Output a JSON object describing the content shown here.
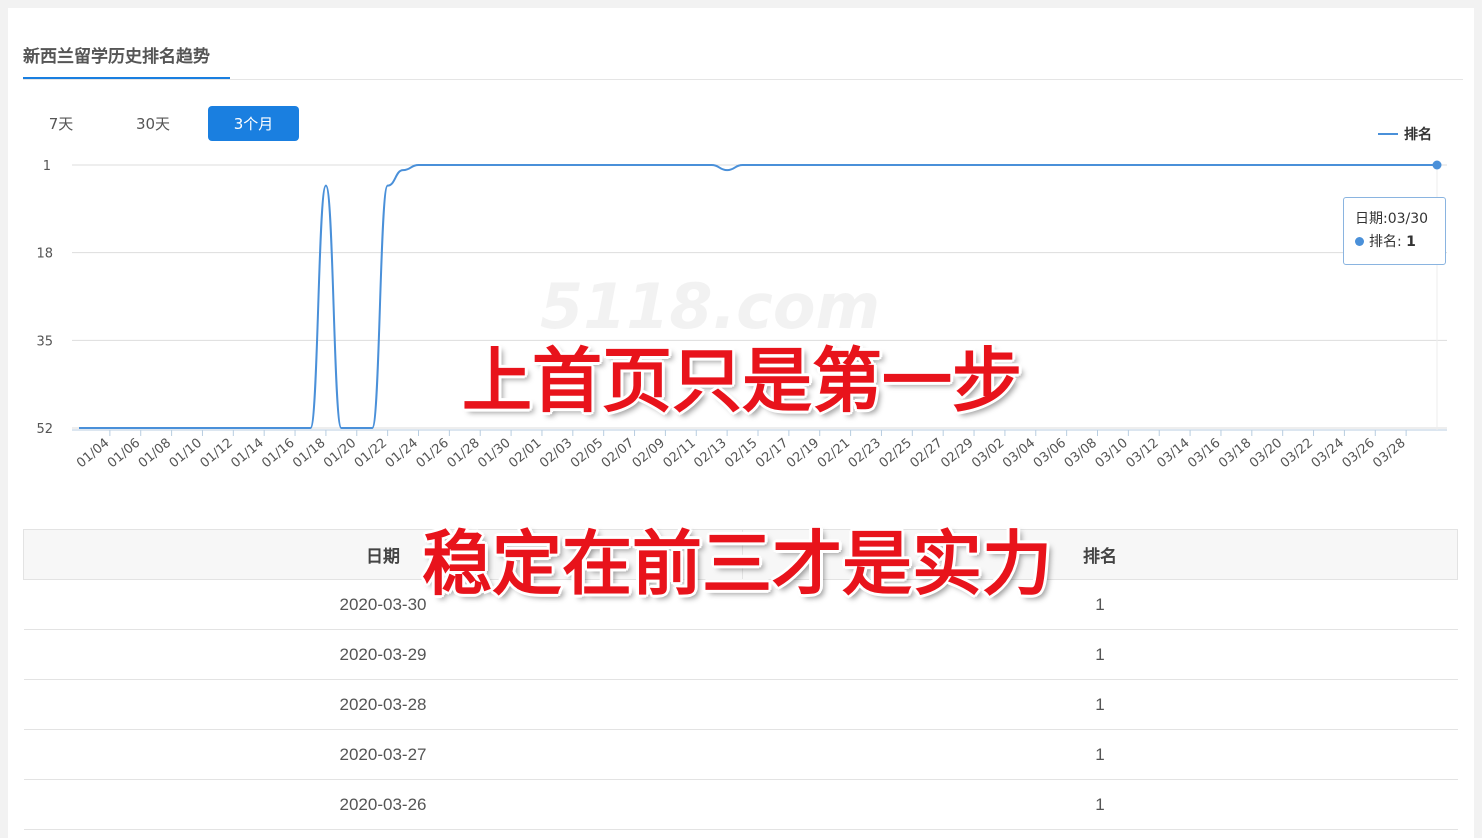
{
  "title": "新西兰留学历史排名趋势",
  "range_buttons": [
    {
      "label": "7天"
    },
    {
      "label": "30天"
    },
    {
      "label": "3个月",
      "active": true
    }
  ],
  "legend": "排名",
  "tooltip": {
    "date_label": "日期:03/30",
    "rank_label": "排名: ",
    "rank_value": "1"
  },
  "watermark": "5118.com",
  "colors": {
    "accent": "#1a7fe0",
    "line": "#4a90d9",
    "overlay": "#e8131b"
  },
  "chart_data": {
    "type": "line",
    "inverted_y": true,
    "ylim": [
      1,
      52
    ],
    "yticks": [
      1,
      18,
      35,
      52
    ],
    "grid": true,
    "legend_position": "top-right",
    "series": [
      {
        "name": "排名",
        "start": "01/02",
        "end": "03/30",
        "x": [
          "01/02",
          "01/03",
          "01/04",
          "01/05",
          "01/06",
          "01/07",
          "01/08",
          "01/09",
          "01/10",
          "01/11",
          "01/12",
          "01/13",
          "01/14",
          "01/15",
          "01/16",
          "01/17",
          "01/18",
          "01/19",
          "01/20",
          "01/21",
          "01/22",
          "01/23",
          "01/24",
          "01/25",
          "01/26",
          "01/27",
          "01/28",
          "01/29",
          "01/30",
          "01/31",
          "02/01",
          "02/02",
          "02/03",
          "02/04",
          "02/05",
          "02/06",
          "02/07",
          "02/08",
          "02/09",
          "02/10",
          "02/11",
          "02/12",
          "02/13",
          "02/14",
          "02/15",
          "02/16",
          "02/17",
          "02/18",
          "02/19",
          "02/20",
          "02/21",
          "02/22",
          "02/23",
          "02/24",
          "02/25",
          "02/26",
          "02/27",
          "02/28",
          "02/29",
          "03/01",
          "03/02",
          "03/03",
          "03/04",
          "03/05",
          "03/06",
          "03/07",
          "03/08",
          "03/09",
          "03/10",
          "03/11",
          "03/12",
          "03/13",
          "03/14",
          "03/15",
          "03/16",
          "03/17",
          "03/18",
          "03/19",
          "03/20",
          "03/21",
          "03/22",
          "03/23",
          "03/24",
          "03/25",
          "03/26",
          "03/27",
          "03/28",
          "03/29",
          "03/30"
        ],
        "values": [
          52,
          52,
          52,
          52,
          52,
          52,
          52,
          52,
          52,
          52,
          52,
          52,
          52,
          52,
          52,
          52,
          5,
          52,
          52,
          52,
          5,
          2,
          1,
          1,
          1,
          1,
          1,
          1,
          1,
          1,
          1,
          1,
          1,
          1,
          1,
          1,
          1,
          1,
          1,
          1,
          1,
          1,
          2,
          1,
          1,
          1,
          1,
          1,
          1,
          1,
          1,
          1,
          1,
          1,
          1,
          1,
          1,
          1,
          1,
          1,
          1,
          1,
          1,
          1,
          1,
          1,
          1,
          1,
          1,
          1,
          1,
          1,
          1,
          1,
          1,
          1,
          1,
          1,
          1,
          1,
          1,
          1,
          1,
          1,
          1,
          1,
          1,
          1,
          1
        ]
      }
    ],
    "xtick_labels": [
      "01/04",
      "01/06",
      "01/08",
      "01/10",
      "01/12",
      "01/14",
      "01/16",
      "01/18",
      "01/20",
      "01/22",
      "01/24",
      "01/26",
      "01/28",
      "01/30",
      "02/01",
      "02/03",
      "02/05",
      "02/07",
      "02/09",
      "02/11",
      "02/13",
      "02/15",
      "02/17",
      "02/19",
      "02/21",
      "02/23",
      "02/25",
      "02/27",
      "02/29",
      "03/02",
      "03/04",
      "03/06",
      "03/08",
      "03/10",
      "03/12",
      "03/14",
      "03/16",
      "03/18",
      "03/20",
      "03/22",
      "03/24",
      "03/26",
      "03/28"
    ]
  },
  "table": {
    "headers": [
      "日期",
      "排名"
    ],
    "rows": [
      [
        "2020-03-30",
        "1"
      ],
      [
        "2020-03-29",
        "1"
      ],
      [
        "2020-03-28",
        "1"
      ],
      [
        "2020-03-27",
        "1"
      ],
      [
        "2020-03-26",
        "1"
      ]
    ]
  },
  "overlay_text": [
    "上首页只是第一步",
    "稳定在前三才是实力"
  ]
}
